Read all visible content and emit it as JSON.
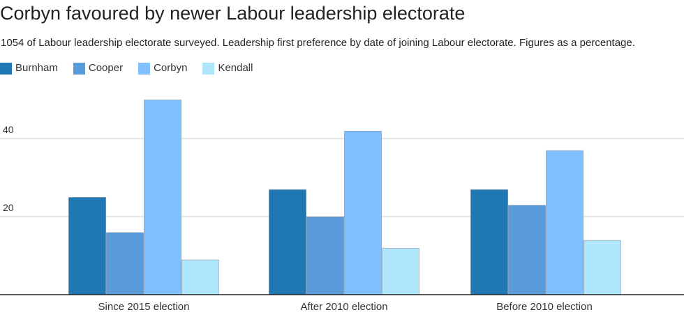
{
  "chart_data": {
    "type": "bar",
    "title": "Corbyn favoured by newer Labour leadership electorate",
    "subtitle": "1054 of Labour leadership electorate surveyed. Leadership first preference by date of joining Labour electorate. Figures as a percentage.",
    "xlabel": "",
    "ylabel": "",
    "categories": [
      "Since 2015 election",
      "After 2010 election",
      "Before 2010 election"
    ],
    "series": [
      {
        "name": "Burnham",
        "color": "#1f77b4",
        "values": [
          25,
          27,
          27
        ]
      },
      {
        "name": "Cooper",
        "color": "#5a9bdc",
        "values": [
          16,
          20,
          23
        ]
      },
      {
        "name": "Corbyn",
        "color": "#80c0ff",
        "values": [
          50,
          42,
          37
        ]
      },
      {
        "name": "Kendall",
        "color": "#afe6fc",
        "values": [
          9,
          12,
          14
        ]
      }
    ],
    "ylim": [
      0,
      50
    ],
    "yticks": [
      20,
      40
    ],
    "grid": true,
    "legend_position": "top-left"
  }
}
